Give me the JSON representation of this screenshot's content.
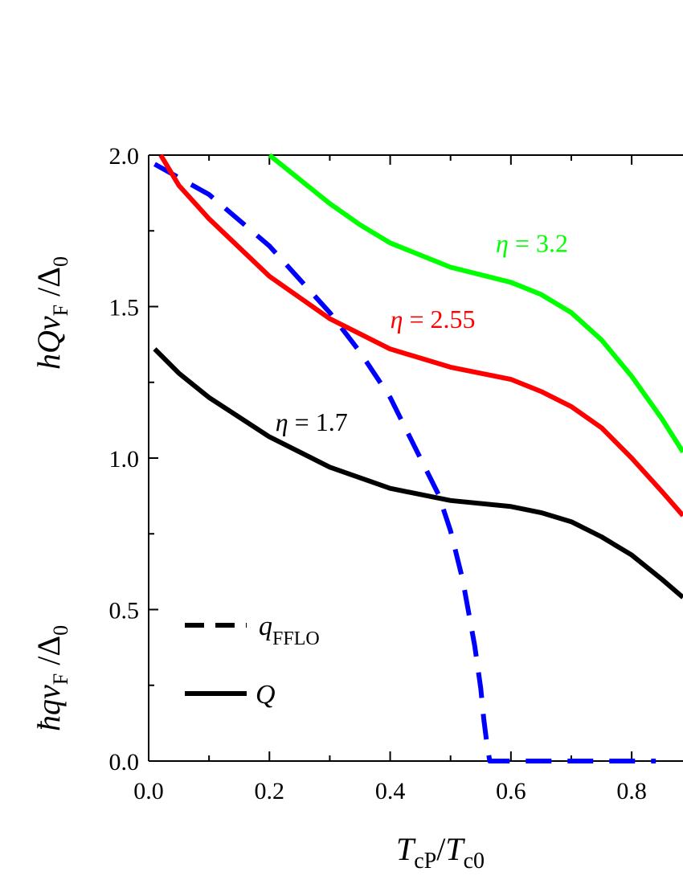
{
  "chart_data": {
    "type": "line",
    "title": "",
    "xlabel": {
      "T1": "T",
      "sub1": "cP",
      "slash": "/",
      "T2": "T",
      "sub2": "c0"
    },
    "ylabel_upper": {
      "h": "h",
      "Q": "Q",
      "v": "v",
      "vsub": "F",
      "slash": " /",
      "delta": "Δ",
      "dsub": "0"
    },
    "ylabel_lower": {
      "h": "ħ",
      "q": "q",
      "v": "v",
      "vsub": "F",
      "slash": " /",
      "delta": "Δ",
      "dsub": "0"
    },
    "xlim": [
      0.0,
      0.885
    ],
    "ylim": [
      0.0,
      2.0
    ],
    "xticks": [
      0.0,
      0.2,
      0.4,
      0.6,
      0.8
    ],
    "xtick_labels": [
      "0.0",
      "0.2",
      "0.4",
      "0.6",
      "0.8"
    ],
    "yticks": [
      0.0,
      0.5,
      1.0,
      1.5,
      2.0
    ],
    "ytick_labels": [
      "0.0",
      "0.5",
      "1.0",
      "1.5",
      "2.0"
    ],
    "grid": false,
    "series": [
      {
        "name": "q_FFLO",
        "style": "dashed",
        "color": "#0000ff",
        "x": [
          0.01,
          0.1,
          0.2,
          0.3,
          0.35,
          0.4,
          0.45,
          0.48,
          0.5,
          0.52,
          0.54,
          0.55,
          0.555,
          0.56,
          0.565,
          0.6,
          0.7,
          0.84
        ],
        "y": [
          1.97,
          1.87,
          1.7,
          1.48,
          1.35,
          1.2,
          1.0,
          0.88,
          0.76,
          0.6,
          0.38,
          0.24,
          0.14,
          0.06,
          0.0,
          0.0,
          0.0,
          0.0
        ]
      },
      {
        "name": "Q, η = 1.7",
        "style": "solid",
        "color": "#000000",
        "x": [
          0.01,
          0.05,
          0.1,
          0.2,
          0.3,
          0.4,
          0.5,
          0.6,
          0.65,
          0.7,
          0.75,
          0.8,
          0.85,
          0.885
        ],
        "y": [
          1.36,
          1.28,
          1.2,
          1.07,
          0.97,
          0.9,
          0.86,
          0.84,
          0.82,
          0.79,
          0.74,
          0.68,
          0.6,
          0.54
        ]
      },
      {
        "name": "Q, η = 2.55",
        "style": "solid",
        "color": "#ff0000",
        "x": [
          0.02,
          0.05,
          0.1,
          0.2,
          0.3,
          0.4,
          0.5,
          0.6,
          0.65,
          0.7,
          0.75,
          0.8,
          0.85,
          0.885
        ],
        "y": [
          2.0,
          1.9,
          1.79,
          1.6,
          1.46,
          1.36,
          1.3,
          1.26,
          1.22,
          1.17,
          1.1,
          1.0,
          0.89,
          0.81
        ]
      },
      {
        "name": "Q, η = 3.2",
        "style": "solid",
        "color": "#00ff00",
        "x": [
          0.2,
          0.25,
          0.3,
          0.35,
          0.4,
          0.5,
          0.6,
          0.65,
          0.7,
          0.75,
          0.8,
          0.85,
          0.885
        ],
        "y": [
          2.0,
          1.92,
          1.84,
          1.77,
          1.71,
          1.63,
          1.58,
          1.54,
          1.48,
          1.39,
          1.27,
          1.13,
          1.02
        ]
      }
    ],
    "annotations": [
      {
        "eta": "η",
        "text": " = 3.2",
        "x": 0.575,
        "y": 1.68,
        "color": "#00ff00"
      },
      {
        "eta": "η",
        "text": " = 2.55",
        "x": 0.4,
        "y": 1.43,
        "color": "#ff0000"
      },
      {
        "eta": "η",
        "text": " = 1.7",
        "x": 0.21,
        "y": 1.09,
        "color": "#000000"
      }
    ],
    "legend": {
      "placement": "bottom-left",
      "entries": [
        {
          "style": "dashed",
          "main": "q",
          "sub": "FFLO"
        },
        {
          "style": "solid",
          "main": "Q",
          "sub": ""
        }
      ]
    }
  }
}
